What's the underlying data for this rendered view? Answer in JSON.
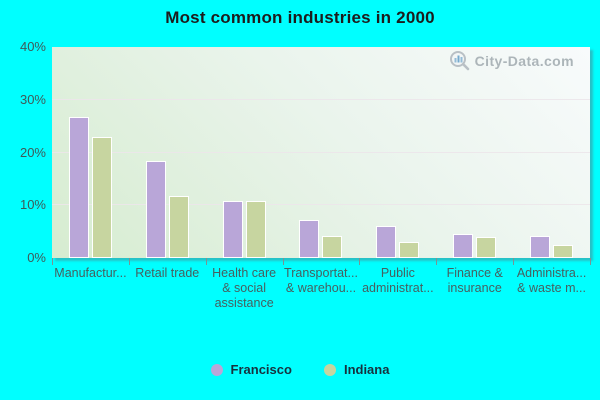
{
  "title": "Most common industries in 2000",
  "watermark": {
    "text": "City-Data.com"
  },
  "colors": {
    "background": "#00ffff",
    "francisco": "#b9a6d8",
    "indiana": "#c7d5a0",
    "grid": "#ece6ea",
    "axis_text": "#466060"
  },
  "legend": {
    "items": [
      {
        "label": "Francisco",
        "color": "#b9a6d8"
      },
      {
        "label": "Indiana",
        "color": "#c7d5a0"
      }
    ]
  },
  "chart_data": {
    "type": "bar",
    "title": "Most common industries in 2000",
    "categories": [
      "Manufactur...",
      "Retail trade",
      "Health care & social assistance",
      "Transportat... & warehou...",
      "Public administrat...",
      "Finance & insurance",
      "Administra... & waste m..."
    ],
    "category_lines": [
      [
        "Manufactur..."
      ],
      [
        "Retail trade"
      ],
      [
        "Health care",
        "& social",
        "assistance"
      ],
      [
        "Transportat...",
        "& warehou..."
      ],
      [
        "Public",
        "administrat..."
      ],
      [
        "Finance &",
        "insurance"
      ],
      [
        "Administra...",
        "& waste m..."
      ]
    ],
    "series": [
      {
        "name": "Francisco",
        "color": "#b9a6d8",
        "values": [
          26.7,
          18.3,
          10.8,
          7.2,
          6.0,
          4.5,
          4.2
        ]
      },
      {
        "name": "Indiana",
        "color": "#c7d5a0",
        "values": [
          22.9,
          11.7,
          10.8,
          4.1,
          3.0,
          4.0,
          2.5
        ]
      }
    ],
    "xlabel": "",
    "ylabel": "",
    "ylim": [
      0,
      40
    ],
    "y_ticks": [
      "0%",
      "10%",
      "20%",
      "30%",
      "40%"
    ],
    "grid": true,
    "legend_position": "bottom"
  }
}
